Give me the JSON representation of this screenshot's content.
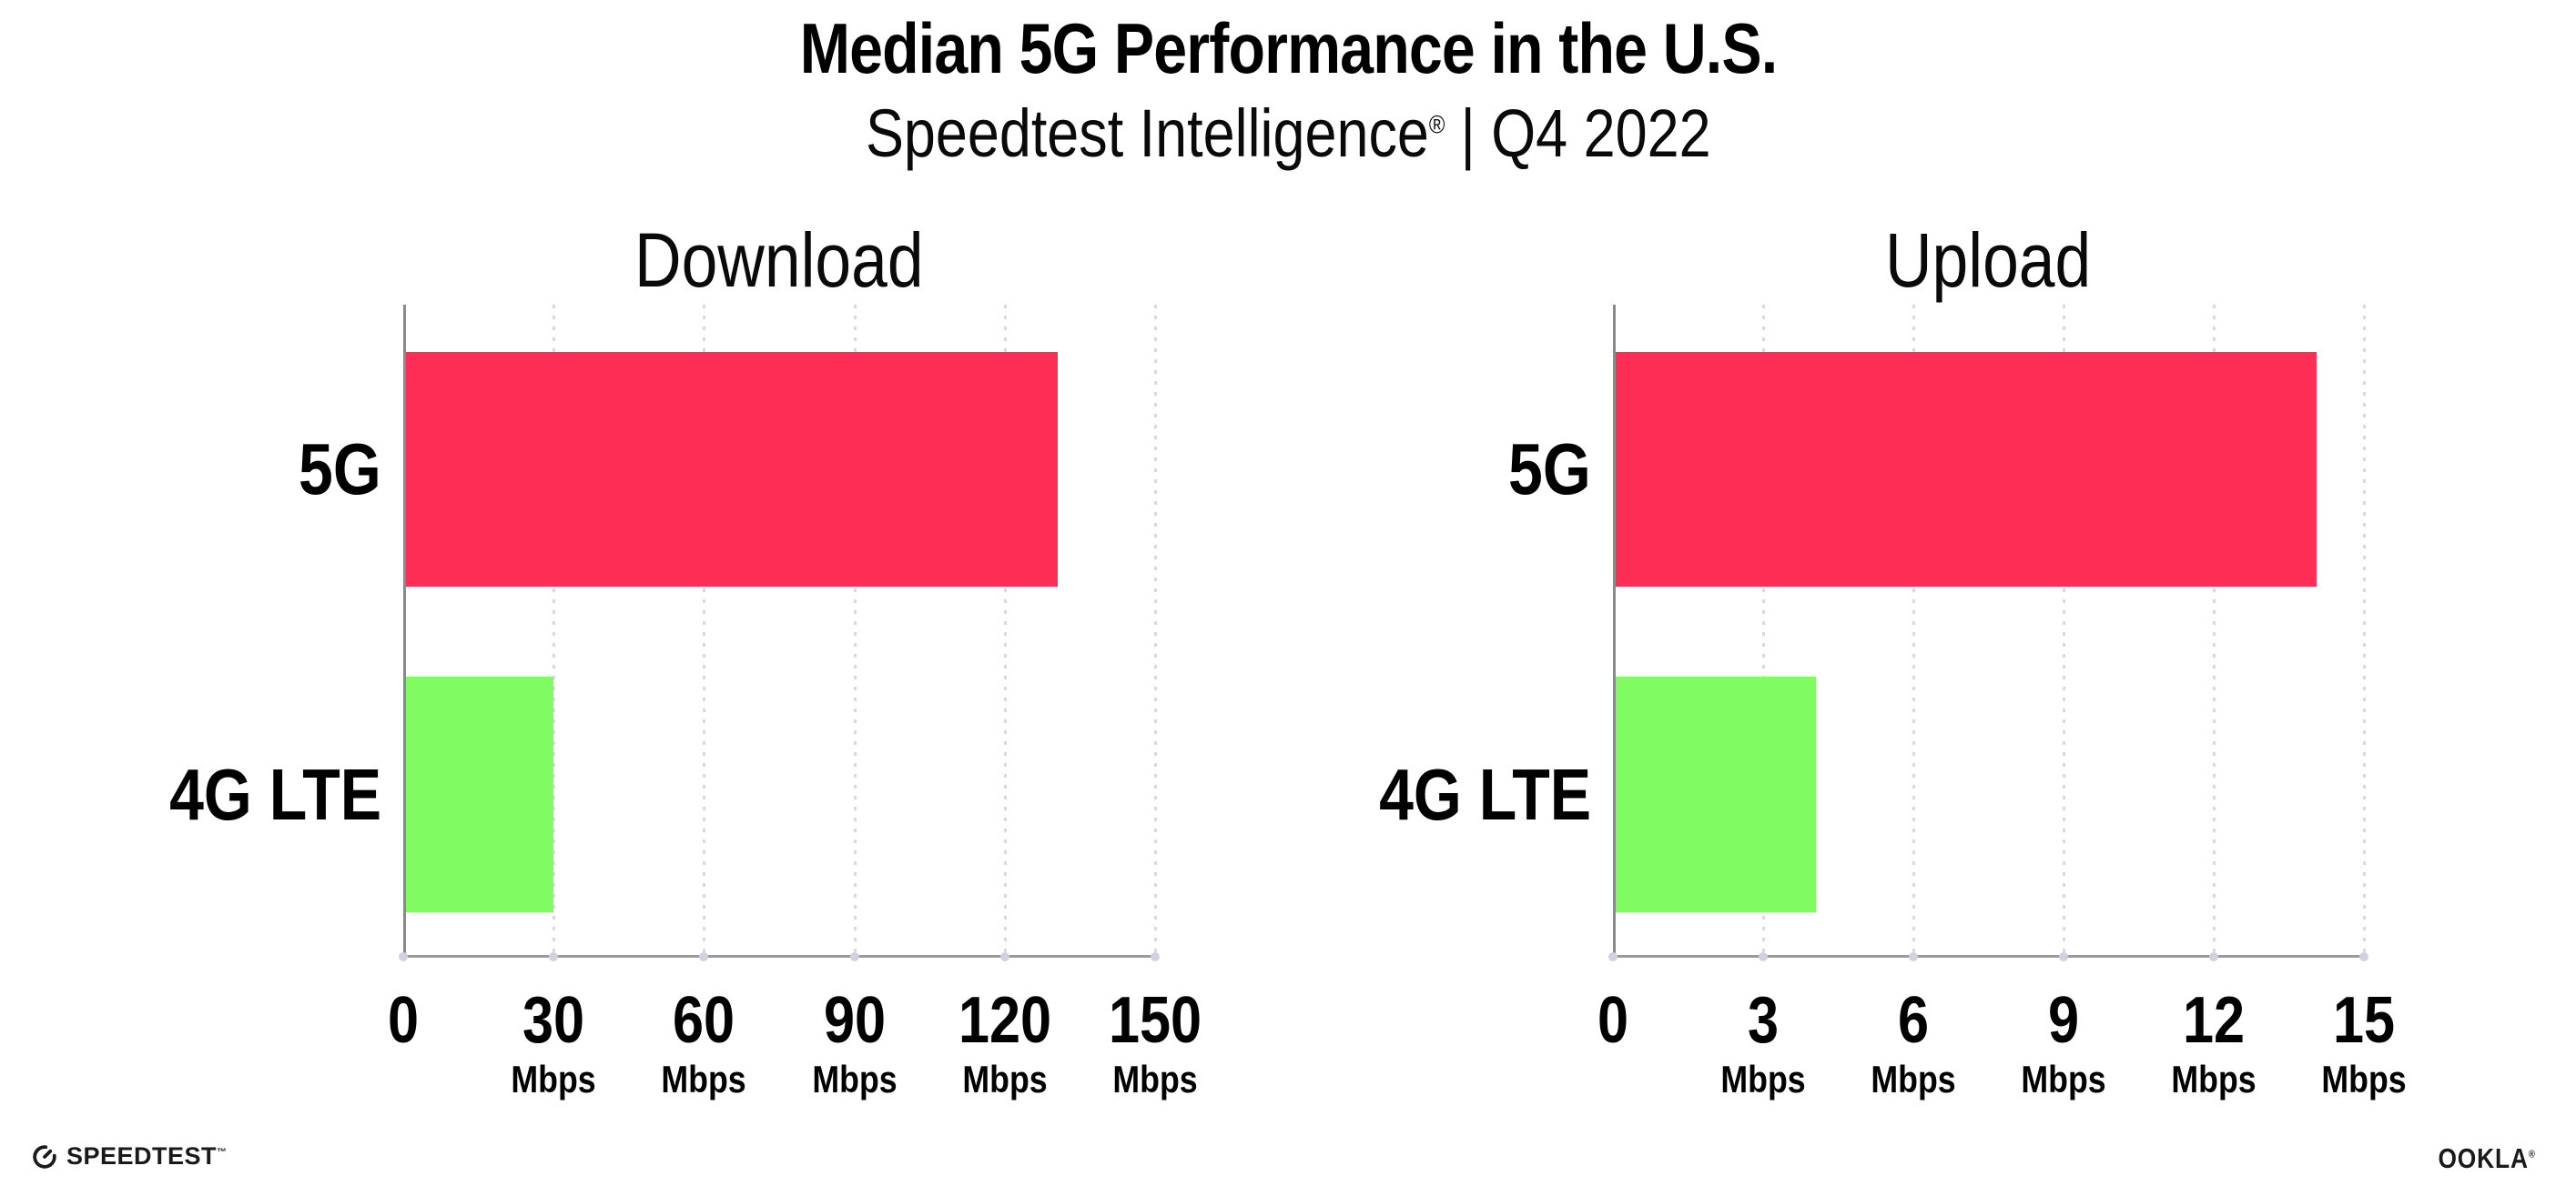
{
  "header": {
    "title": "Median 5G Performance in the U.S.",
    "subtitle_brand": "Speedtest Intelligence",
    "subtitle_reg": "®",
    "subtitle_period": "| Q4 2022"
  },
  "chart_data": [
    {
      "type": "bar",
      "orientation": "horizontal",
      "title": "Download",
      "categories": [
        "5G",
        "4G LTE"
      ],
      "values": [
        130,
        29.5
      ],
      "unit": "Mbps",
      "xlabel": "",
      "ylabel": "",
      "xlim": [
        0,
        150
      ],
      "xticks": [
        0,
        30,
        60,
        90,
        120,
        150
      ],
      "series_colors": [
        "#FD2D55",
        "#80FB61"
      ],
      "grid": "dotted-vertical",
      "legend_position": "none"
    },
    {
      "type": "bar",
      "orientation": "horizontal",
      "title": "Upload",
      "categories": [
        "5G",
        "4G LTE"
      ],
      "values": [
        14,
        4
      ],
      "unit": "Mbps",
      "xlabel": "",
      "ylabel": "",
      "xlim": [
        0,
        15
      ],
      "xticks": [
        0,
        3,
        6,
        9,
        12,
        15
      ],
      "series_colors": [
        "#FD2D55",
        "#80FB61"
      ],
      "grid": "dotted-vertical",
      "legend_position": "none"
    }
  ],
  "footer": {
    "speedtest_label": "SPEEDTEST",
    "speedtest_mark": "™",
    "ookla_label": "OOKLA",
    "ookla_mark": "®"
  },
  "colors": {
    "bar_5g": "#FD2D55",
    "bar_4g_lte": "#80FB61",
    "axis": "#8A8A8A",
    "gridline": "#D8D8E4",
    "text": "#000000"
  }
}
